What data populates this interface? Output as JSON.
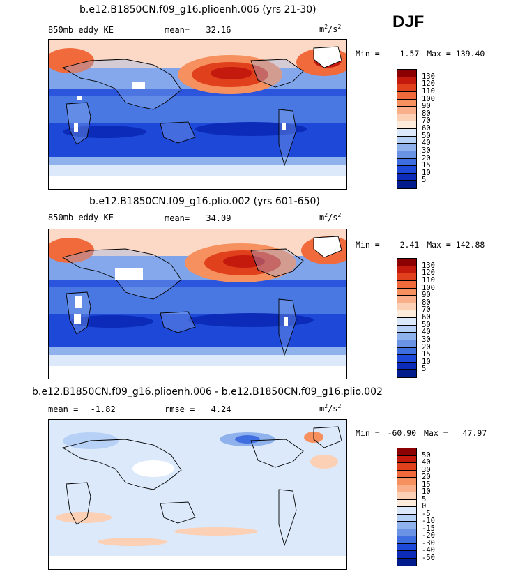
{
  "season": "DJF",
  "units_base": "m",
  "units_exp1": "2",
  "units_sep": "/s",
  "units_exp2": "2",
  "panels": [
    {
      "title": "b.e12.B1850CN.f09_g16.plioenh.006 (yrs 21-30)",
      "field": "850mb eddy KE",
      "stat_label": "mean=",
      "stat_value": "32.16",
      "min_label": "Min =",
      "min_value": "1.57",
      "max_label": "Max =",
      "max_value": "139.40"
    },
    {
      "title": "b.e12.B1850CN.f09_g16.plio.002 (yrs 601-650)",
      "field": "850mb eddy KE",
      "stat_label": "mean=",
      "stat_value": "34.09",
      "min_label": "Min =",
      "min_value": "2.41",
      "max_label": "Max =",
      "max_value": "142.88"
    },
    {
      "title": "b.e12.B1850CN.f09_g16.plioenh.006 - b.e12.B1850CN.f09_g16.plio.002",
      "mean_label": "mean =",
      "mean_value": "-1.82",
      "rmse_label": "rmse =",
      "rmse_value": "4.24",
      "min_label": "Min =",
      "min_value": "-60.90",
      "max_label": "Max =",
      "max_value": "47.97"
    }
  ],
  "colorbar_abs": {
    "levels": [
      "130",
      "120",
      "110",
      "100",
      "90",
      "80",
      "70",
      "60",
      "50",
      "40",
      "30",
      "20",
      "15",
      "10",
      "5"
    ],
    "colors": [
      "#8b0000",
      "#c41a0e",
      "#e0401c",
      "#f06a3c",
      "#f6915f",
      "#f9b08a",
      "#fbd0b5",
      "#fdebdc",
      "#dbe9fb",
      "#b7d0f5",
      "#8fb2ed",
      "#6a93e6",
      "#3f6ee0",
      "#1d48d8",
      "#0b2bb8",
      "#001b8c"
    ]
  },
  "colorbar_diff": {
    "levels": [
      "50",
      "40",
      "30",
      "20",
      "15",
      "10",
      "5",
      "0",
      "-5",
      "-10",
      "-15",
      "-20",
      "-30",
      "-40",
      "-50"
    ],
    "colors": [
      "#8b0000",
      "#c41a0e",
      "#e0401c",
      "#f06a3c",
      "#f6915f",
      "#f9b08a",
      "#fbd0b5",
      "#fdebdc",
      "#dbe9fb",
      "#b7d0f5",
      "#8fb2ed",
      "#6a93e6",
      "#3f6ee0",
      "#1d48d8",
      "#0b2bb8",
      "#001b8c"
    ]
  },
  "chart_data": {
    "type": "heatmap",
    "season": "DJF",
    "variable": "850mb eddy KE",
    "units": "m^2/s^2",
    "maps": [
      {
        "title": "b.e12.B1850CN.f09_g16.plioenh.006 (yrs 21-30)",
        "mean": 32.16,
        "min": 1.57,
        "max": 139.4,
        "contour_levels": [
          5,
          10,
          15,
          20,
          30,
          40,
          50,
          60,
          70,
          80,
          90,
          100,
          110,
          120,
          130
        ]
      },
      {
        "title": "b.e12.B1850CN.f09_g16.plio.002 (yrs 601-650)",
        "mean": 34.09,
        "min": 2.41,
        "max": 142.88,
        "contour_levels": [
          5,
          10,
          15,
          20,
          30,
          40,
          50,
          60,
          70,
          80,
          90,
          100,
          110,
          120,
          130
        ]
      },
      {
        "title": "b.e12.B1850CN.f09_g16.plioenh.006 - b.e12.B1850CN.f09_g16.plio.002",
        "mean": -1.82,
        "rmse": 4.24,
        "min": -60.9,
        "max": 47.97,
        "contour_levels": [
          -50,
          -40,
          -30,
          -20,
          -15,
          -10,
          -5,
          0,
          5,
          10,
          15,
          20,
          30,
          40,
          50
        ]
      }
    ]
  }
}
